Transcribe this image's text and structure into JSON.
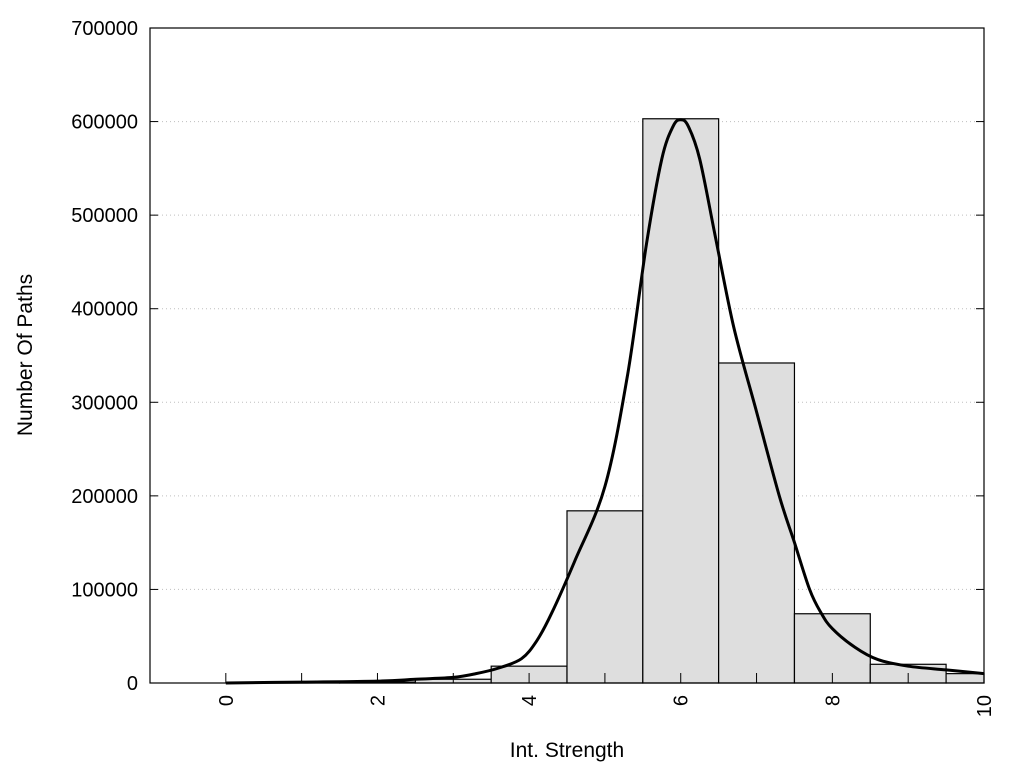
{
  "chart_data": {
    "type": "bar",
    "xlabel": "Int. Strength",
    "ylabel": "Number Of Paths",
    "xlim": [
      -1,
      10
    ],
    "ylim": [
      0,
      700000
    ],
    "x_ticks": [
      0,
      2,
      4,
      6,
      8,
      10
    ],
    "y_ticks": [
      0,
      100000,
      200000,
      300000,
      400000,
      500000,
      600000,
      700000
    ],
    "grid": "horizontal dotted",
    "bars": {
      "centers": [
        0,
        1,
        2,
        3,
        4,
        5,
        6,
        7,
        8,
        9,
        10
      ],
      "width": 1,
      "values": [
        0,
        200,
        1000,
        4000,
        18000,
        184000,
        603000,
        342000,
        74000,
        20000,
        10000
      ],
      "color": "#dedede"
    },
    "curve": {
      "x": [
        0,
        1,
        2,
        2.5,
        3,
        3.3,
        3.6,
        3.9,
        4.1,
        4.3,
        4.6,
        5.0,
        5.3,
        5.55,
        5.75,
        5.9,
        6.0,
        6.1,
        6.25,
        6.45,
        6.7,
        7.0,
        7.3,
        7.5,
        7.7,
        7.85,
        8.0,
        8.3,
        8.6,
        9.0,
        9.5,
        10.0
      ],
      "y": [
        0,
        1000,
        2000,
        4000,
        6000,
        10000,
        16000,
        26000,
        45000,
        75000,
        130000,
        210000,
        330000,
        470000,
        560000,
        595000,
        602000,
        595000,
        560000,
        480000,
        380000,
        290000,
        200000,
        150000,
        100000,
        75000,
        58000,
        38000,
        25000,
        18000,
        14000,
        10000
      ],
      "color": "#000000"
    }
  }
}
